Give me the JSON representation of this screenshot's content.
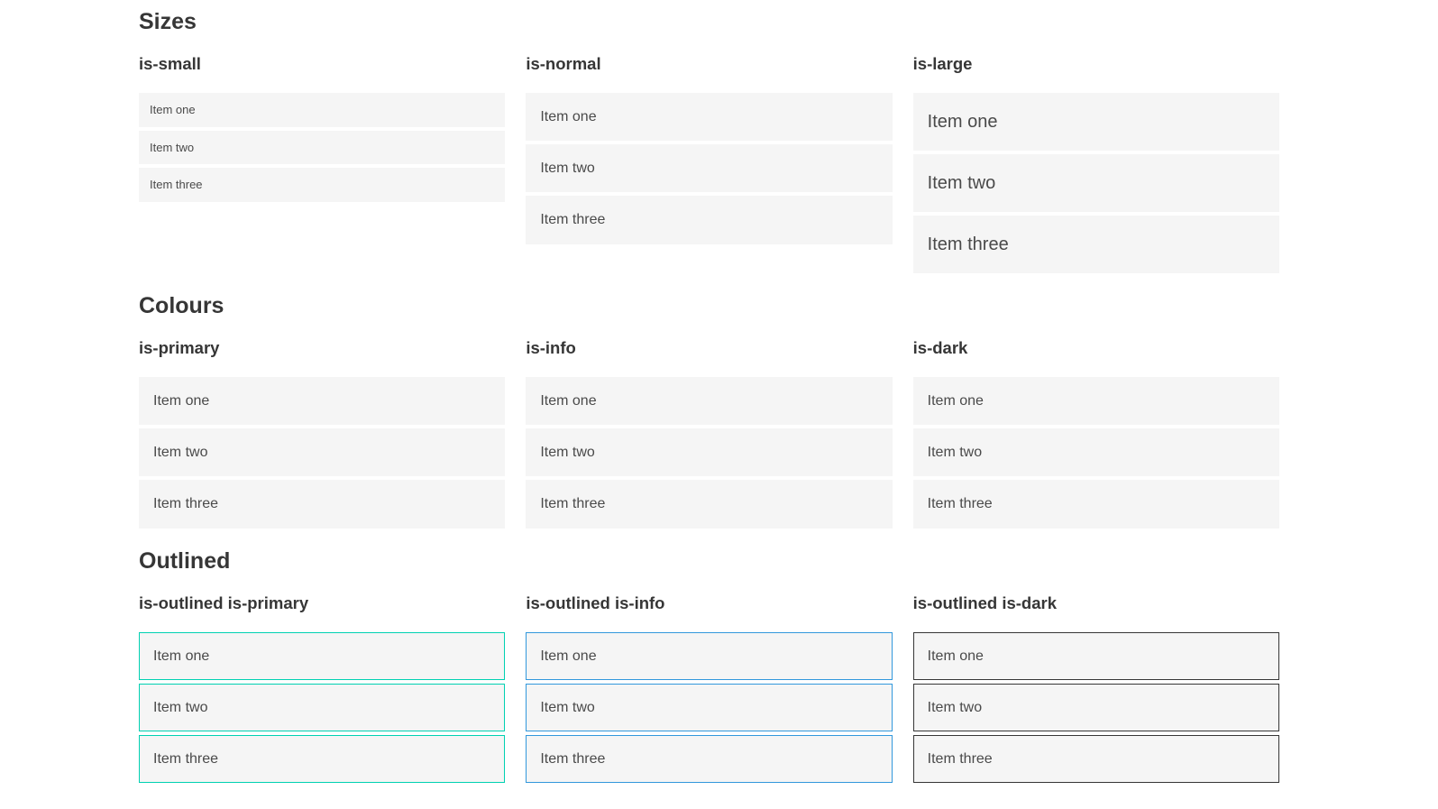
{
  "sections": [
    {
      "title": "Sizes",
      "groups": [
        {
          "label": "is-small",
          "items": [
            "Item one",
            "Item two",
            "Item three"
          ]
        },
        {
          "label": "is-normal",
          "items": [
            "Item one",
            "Item two",
            "Item three"
          ]
        },
        {
          "label": "is-large",
          "items": [
            "Item one",
            "Item two",
            "Item three"
          ]
        }
      ]
    },
    {
      "title": "Colours",
      "groups": [
        {
          "label": "is-primary",
          "items": [
            "Item one",
            "Item two",
            "Item three"
          ]
        },
        {
          "label": "is-info",
          "items": [
            "Item one",
            "Item two",
            "Item three"
          ]
        },
        {
          "label": "is-dark",
          "items": [
            "Item one",
            "Item two",
            "Item three"
          ]
        }
      ]
    },
    {
      "title": "Outlined",
      "groups": [
        {
          "label": "is-outlined is-primary",
          "items": [
            "Item one",
            "Item two",
            "Item three"
          ]
        },
        {
          "label": "is-outlined is-info",
          "items": [
            "Item one",
            "Item two",
            "Item three"
          ]
        },
        {
          "label": "is-outlined is-dark",
          "items": [
            "Item one",
            "Item two",
            "Item three"
          ]
        }
      ]
    }
  ],
  "colors": {
    "primary": "#00d1b2",
    "info": "#3298dc",
    "dark": "#363636",
    "item_background": "#f5f5f5",
    "item_text": "#4a4a4a",
    "heading_text": "#363636",
    "inverted_text": "#ffffff"
  }
}
